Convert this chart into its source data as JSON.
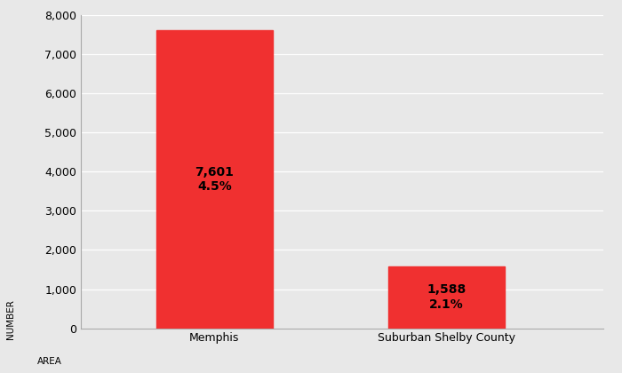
{
  "categories": [
    "Memphis",
    "Suburban Shelby County"
  ],
  "values": [
    7601,
    1588
  ],
  "percents": [
    "4.5%",
    "2.1%"
  ],
  "bar_color": "#f03030",
  "background_color": "#e8e8e8",
  "plot_bg_color": "#e8e8e8",
  "ylim": [
    0,
    8000
  ],
  "yticks": [
    0,
    1000,
    2000,
    3000,
    4000,
    5000,
    6000,
    7000,
    8000
  ],
  "ylabel": "NUMBER",
  "xlabel": "AREA",
  "label_fontsize": 10,
  "tick_fontsize": 9,
  "axis_label_fontsize": 7.5,
  "bar_positions": [
    0.28,
    0.68
  ],
  "bar_width": 0.2,
  "xlim": [
    0.05,
    0.95
  ]
}
